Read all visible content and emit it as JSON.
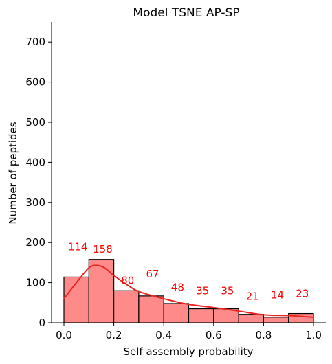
{
  "chart_data": {
    "type": "bar",
    "title": "Model TSNE AP-SP",
    "xlabel": "Self assembly probability",
    "ylabel": "Number of peptides",
    "xlim": [
      -0.03,
      1.05
    ],
    "ylim": [
      0,
      750
    ],
    "xticks": [
      "0.0",
      "0.2",
      "0.4",
      "0.6",
      "0.8",
      "1.0"
    ],
    "xtick_values": [
      0.0,
      0.2,
      0.4,
      0.6,
      0.8,
      1.0
    ],
    "yticks": [
      "0",
      "100",
      "200",
      "300",
      "400",
      "500",
      "600",
      "700"
    ],
    "ytick_values": [
      0,
      100,
      200,
      300,
      400,
      500,
      600,
      700
    ],
    "bin_edges": [
      0.0,
      0.1,
      0.2,
      0.3,
      0.4,
      0.5,
      0.6,
      0.7,
      0.8,
      0.9,
      1.0
    ],
    "values": [
      114,
      158,
      80,
      67,
      48,
      35,
      35,
      21,
      14,
      23
    ],
    "labels": [
      "114",
      "158",
      "80",
      "67",
      "48",
      "35",
      "35",
      "21",
      "14",
      "23"
    ],
    "label_offsets": [
      75,
      25,
      25,
      55,
      40,
      45,
      45,
      45,
      55,
      50
    ],
    "kde": {
      "x": [
        0.0,
        0.05,
        0.1,
        0.13,
        0.16,
        0.2,
        0.25,
        0.3,
        0.4,
        0.5,
        0.6,
        0.7,
        0.8,
        0.9,
        1.0
      ],
      "y": [
        60,
        100,
        137,
        143,
        138,
        118,
        96,
        78,
        60,
        46,
        38,
        29,
        20,
        18,
        14
      ]
    },
    "grid": false,
    "colors": {
      "bar_fill": "#ff8a8a",
      "bar_edge": "#000000",
      "kde_line": "#e8251f",
      "label": "#ff0000"
    }
  }
}
